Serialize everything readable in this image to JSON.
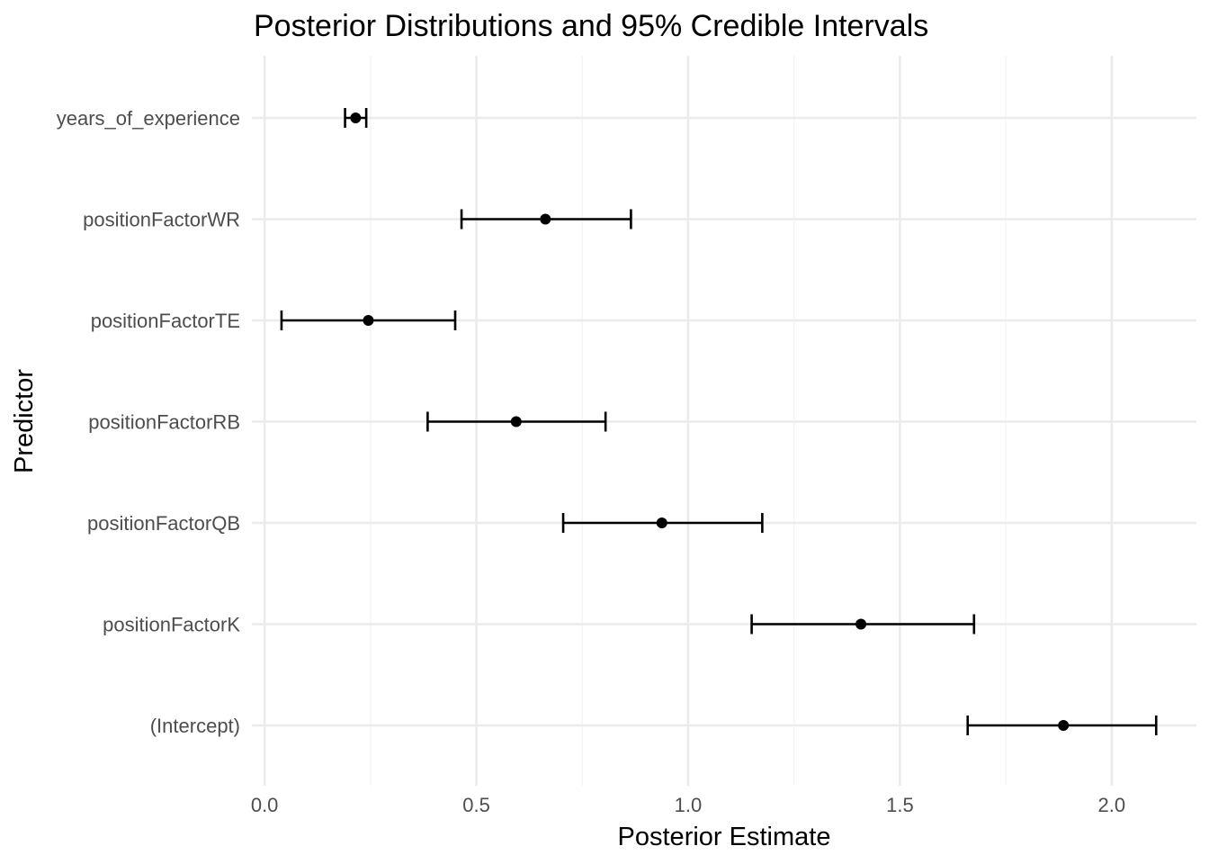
{
  "chart_data": {
    "type": "scatter",
    "title": "Posterior Distributions and 95% Credible Intervals",
    "xlabel": "Posterior Estimate",
    "ylabel": "Predictor",
    "xlim": [
      -0.03,
      2.2
    ],
    "x_ticks": [
      0.0,
      0.5,
      1.0,
      1.5,
      2.0
    ],
    "x_tick_labels": [
      "0.0",
      "0.5",
      "1.0",
      "1.5",
      "2.0"
    ],
    "grid": true,
    "legend": "none",
    "point_color": "#000000",
    "categories": [
      "years_of_experience",
      "positionFactorWR",
      "positionFactorTE",
      "positionFactorRB",
      "positionFactorQB",
      "positionFactorK",
      "(Intercept)"
    ],
    "series": [
      {
        "estimate": [
          0.215,
          0.663,
          0.245,
          0.594,
          0.938,
          1.408,
          1.886
        ],
        "lower": [
          0.19,
          0.465,
          0.04,
          0.385,
          0.705,
          1.15,
          1.66
        ],
        "upper": [
          0.24,
          0.865,
          0.45,
          0.805,
          1.175,
          1.675,
          2.105
        ]
      }
    ]
  }
}
